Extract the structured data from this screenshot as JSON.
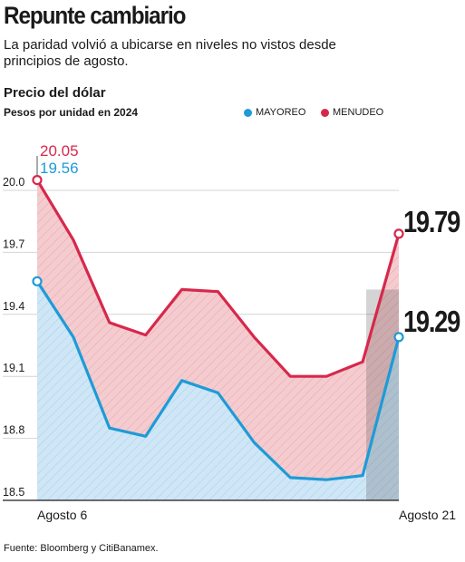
{
  "header": {
    "title": "Repunte cambiario",
    "subtitle": "La paridad volvió a ubicarse en niveles no vistos desde principios de agosto."
  },
  "chart_header": {
    "title": "Precio del dólar",
    "unit": "Pesos por unidad en 2024"
  },
  "legend": {
    "mayoreo": "MAYOREO",
    "menudeo": "MENUDEO"
  },
  "colors": {
    "mayoreo": "#1e9bd7",
    "menudeo": "#d7284b",
    "mayoreo_fill": "#cfe6f6",
    "menudeo_fill": "#f4cccf"
  },
  "footer": {
    "source": "Fuente: Bloomberg y CitiBanamex."
  },
  "chart_data": {
    "type": "line",
    "x": [
      "Agosto 6",
      "",
      "",
      "",
      "",
      "",
      "",
      "",
      "",
      "",
      "Agosto 21"
    ],
    "x_tick_labels": [
      "Agosto 6",
      "Agosto 21"
    ],
    "series": [
      {
        "name": "MENUDEO",
        "values": [
          20.05,
          19.76,
          19.36,
          19.3,
          19.52,
          19.51,
          19.29,
          19.1,
          19.1,
          19.17,
          19.79
        ],
        "start_label": "20.05",
        "end_label": "19.79"
      },
      {
        "name": "MAYOREO",
        "values": [
          19.56,
          19.29,
          18.85,
          18.81,
          19.08,
          19.02,
          18.78,
          18.61,
          18.6,
          18.62,
          19.29
        ],
        "start_label": "19.56",
        "end_label": "19.29"
      }
    ],
    "y_ticks": [
      "20.0",
      "19.7",
      "19.4",
      "19.1",
      "18.8",
      "18.5"
    ],
    "ylim": [
      18.5,
      20.15
    ],
    "grid": true
  }
}
